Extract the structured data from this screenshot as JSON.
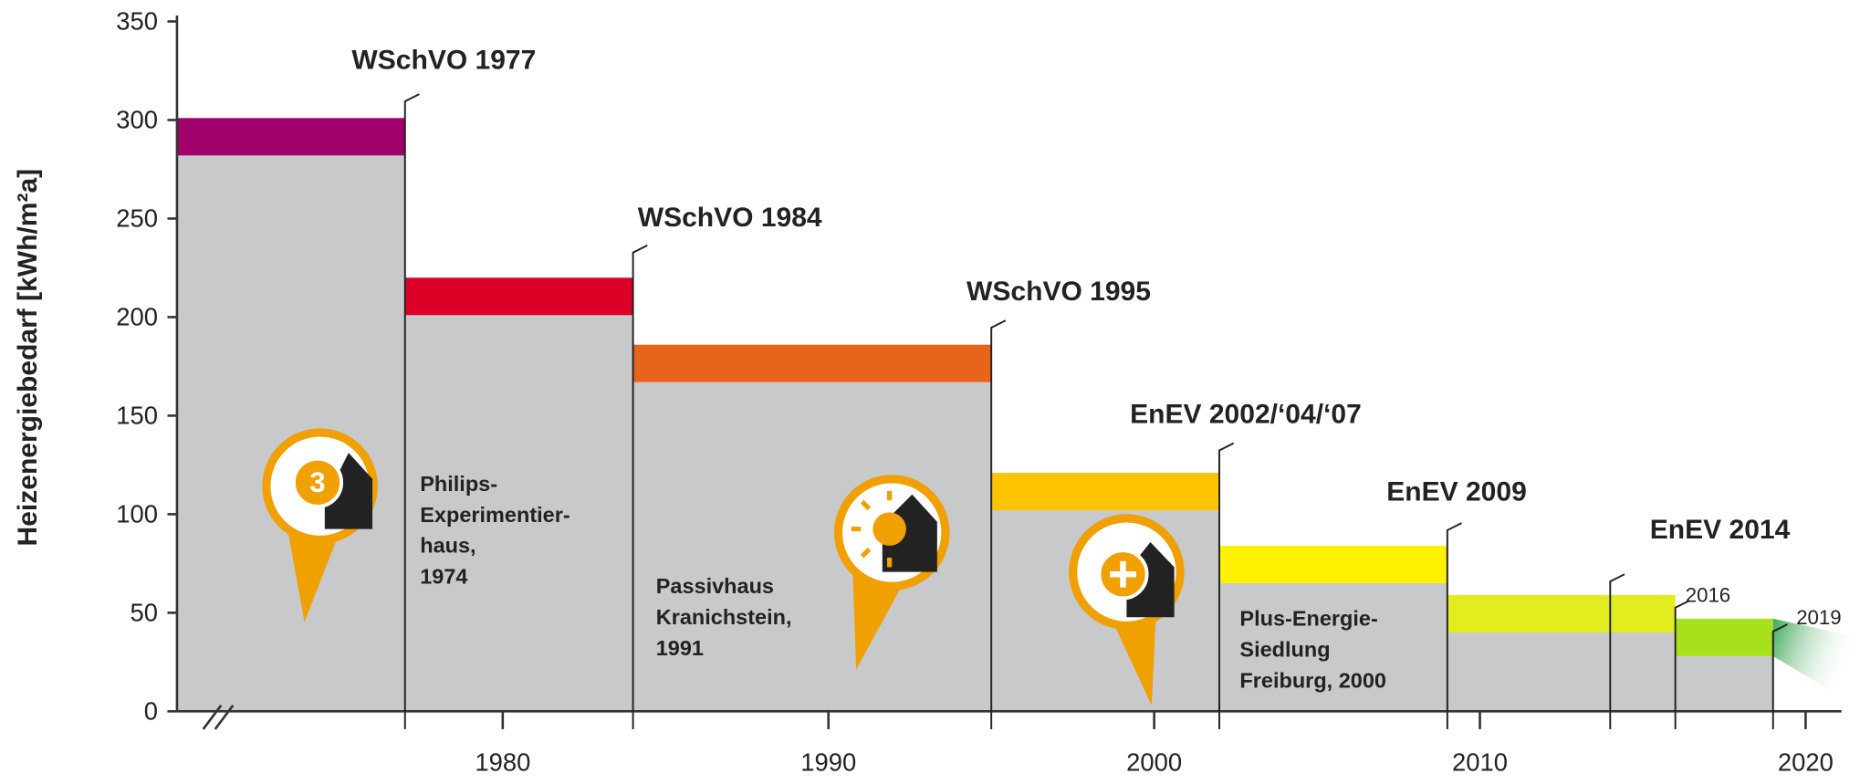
{
  "chart_data": {
    "type": "range_step",
    "y_label": "Heizenergiebedarf [kWh/m²a]",
    "xlim": [
      1970,
      2021.1
    ],
    "ylim": [
      0,
      350
    ],
    "xticks": [
      1980,
      1990,
      2000,
      2010,
      2020
    ],
    "yticks": [
      0,
      50,
      100,
      150,
      200,
      250,
      300,
      350
    ],
    "gray_color": "#c8c9cb",
    "segments": [
      {
        "start": 1970,
        "end": 1977,
        "low": 282,
        "high": 301,
        "color": "#a0006a"
      },
      {
        "start": 1977,
        "end": 1984,
        "low": 201,
        "high": 220,
        "color": "#dc0027"
      },
      {
        "start": 1984,
        "end": 1995,
        "low": 167,
        "high": 186,
        "color": "#e8641b"
      },
      {
        "start": 1995,
        "end": 2002,
        "low": 102,
        "high": 121,
        "color": "#fdc200"
      },
      {
        "start": 2002,
        "end": 2009,
        "low": 65,
        "high": 84,
        "color": "#fff100"
      },
      {
        "start": 2009,
        "end": 2016,
        "low": 40,
        "high": 59,
        "color": "#e3ec1e"
      },
      {
        "start": 2016,
        "end": 2019,
        "low": 28,
        "high": 47,
        "color": "#a7e11c"
      }
    ],
    "markers": [
      {
        "label": "WSchVO 1977",
        "x": 1977
      },
      {
        "label": "WSchVO 1984",
        "x": 1984
      },
      {
        "label": "WSchVO 1995",
        "x": 1995
      },
      {
        "label": "EnEV 2002/‘04/‘07",
        "x": 2002
      },
      {
        "label": "EnEV 2009",
        "x": 2009
      },
      {
        "label": "EnEV 2014",
        "x": 2014
      },
      {
        "label": "2016",
        "x": 2016
      },
      {
        "label": "2019",
        "x": 2019
      }
    ],
    "annotations": [
      {
        "lines": [
          "Philips-",
          "Experimentier-",
          "haus,",
          "1974"
        ]
      },
      {
        "lines": [
          "Passivhaus",
          "Kranichstein,",
          "1991"
        ]
      },
      {
        "lines": [
          "Plus-Energie-",
          "Siedlung",
          "Freiburg, 2000"
        ]
      }
    ]
  }
}
